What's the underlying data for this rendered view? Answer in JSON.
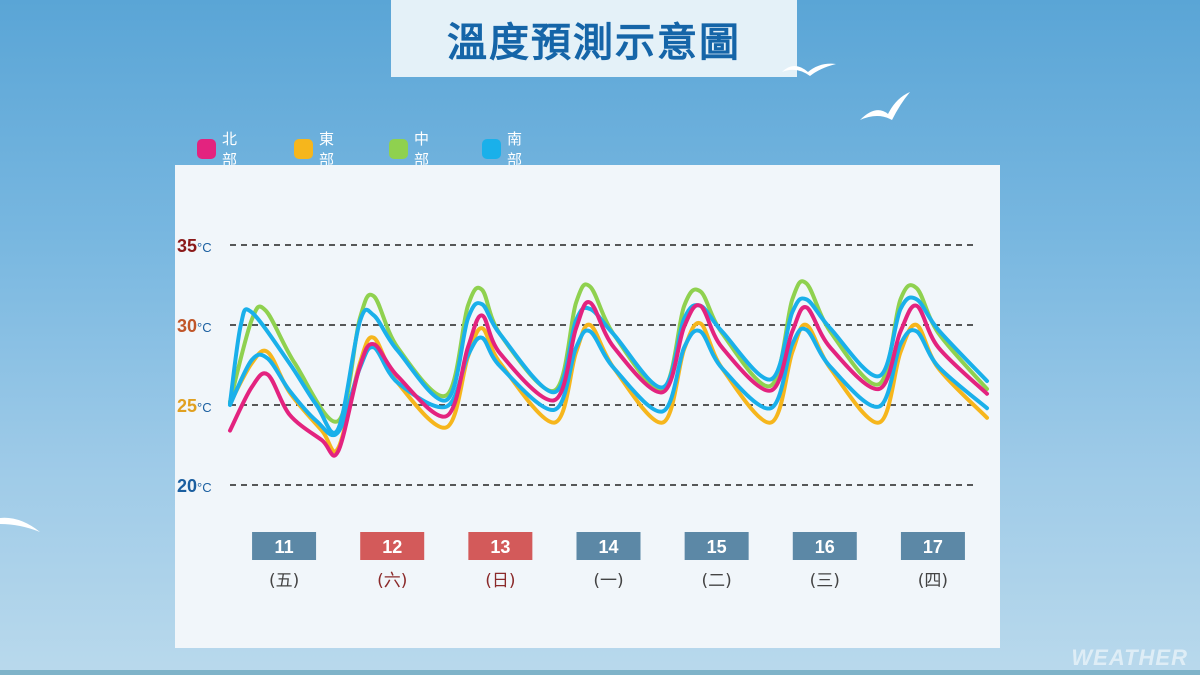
{
  "title": "溫度預測示意圖",
  "watermark": "WEATHER",
  "legend": [
    {
      "label": "北部",
      "color": "#e3237f"
    },
    {
      "label": "東部",
      "color": "#f6b61c"
    },
    {
      "label": "中部",
      "color": "#8fd14f"
    },
    {
      "label": "南部",
      "color": "#1ab0ea"
    }
  ],
  "chart_data": {
    "type": "line",
    "title": "溫度預測示意圖",
    "xlabel": "",
    "ylabel": "",
    "ylim": [
      20,
      36
    ],
    "grid": "dashed reference lines at 20, 25, 30, 35",
    "legend_position": "top-left",
    "y_ticks": [
      {
        "value": 35,
        "num": "35",
        "unit": "°C",
        "color": "#8b1a1a"
      },
      {
        "value": 30,
        "num": "30",
        "unit": "°C",
        "color": "#c0562a"
      },
      {
        "value": 25,
        "num": "25",
        "unit": "°C",
        "color": "#e0a020"
      },
      {
        "value": 20,
        "num": "20",
        "unit": "°C",
        "color": "#1b5fa0"
      }
    ],
    "days": [
      {
        "date": "11",
        "weekday": "(五)",
        "holiday": false
      },
      {
        "date": "12",
        "weekday": "(六)",
        "holiday": true
      },
      {
        "date": "13",
        "weekday": "(日)",
        "holiday": true
      },
      {
        "date": "14",
        "weekday": "(一)",
        "holiday": false
      },
      {
        "date": "15",
        "weekday": "(二)",
        "holiday": false
      },
      {
        "date": "16",
        "weekday": "(三)",
        "holiday": false
      },
      {
        "date": "17",
        "weekday": "(四)",
        "holiday": false
      }
    ],
    "date_box_colors": {
      "weekday": "#5c88a6",
      "holiday": "#d35a5a"
    },
    "weekday_text_colors": {
      "weekday": "#444444",
      "holiday": "#8b2a2a"
    },
    "x_unit": "day index (0 = 11日 00時)",
    "x_range": [
      0,
      7
    ],
    "series": [
      {
        "name": "北部",
        "color": "#e3237f",
        "points": [
          [
            0,
            23.4
          ],
          [
            0.2,
            26.1
          ],
          [
            0.35,
            26.9
          ],
          [
            0.55,
            24.4
          ],
          [
            0.85,
            22.8
          ],
          [
            1.0,
            22.1
          ],
          [
            1.2,
            27.4
          ],
          [
            1.33,
            28.8
          ],
          [
            1.55,
            26.8
          ],
          [
            2.0,
            24.3
          ],
          [
            2.2,
            28.6
          ],
          [
            2.33,
            30.6
          ],
          [
            2.5,
            28.2
          ],
          [
            3.0,
            25.3
          ],
          [
            3.2,
            29.8
          ],
          [
            3.33,
            31.4
          ],
          [
            3.55,
            28.6
          ],
          [
            4.0,
            25.8
          ],
          [
            4.2,
            29.9
          ],
          [
            4.35,
            31.2
          ],
          [
            4.55,
            28.6
          ],
          [
            5.0,
            25.9
          ],
          [
            5.2,
            29.6
          ],
          [
            5.33,
            31.1
          ],
          [
            5.55,
            28.6
          ],
          [
            6.0,
            26.0
          ],
          [
            6.2,
            29.6
          ],
          [
            6.35,
            31.2
          ],
          [
            6.55,
            28.6
          ],
          [
            7.0,
            25.7
          ]
        ]
      },
      {
        "name": "東部",
        "color": "#f6b61c",
        "points": [
          [
            0,
            25.1
          ],
          [
            0.2,
            27.6
          ],
          [
            0.35,
            28.3
          ],
          [
            0.55,
            25.8
          ],
          [
            0.85,
            23.4
          ],
          [
            1.0,
            22.3
          ],
          [
            1.2,
            27.6
          ],
          [
            1.33,
            29.2
          ],
          [
            1.55,
            26.4
          ],
          [
            2.0,
            23.6
          ],
          [
            2.2,
            28.0
          ],
          [
            2.33,
            29.8
          ],
          [
            2.5,
            27.6
          ],
          [
            3.0,
            23.9
          ],
          [
            3.2,
            28.3
          ],
          [
            3.33,
            30.0
          ],
          [
            3.55,
            27.3
          ],
          [
            4.0,
            23.9
          ],
          [
            4.2,
            28.5
          ],
          [
            4.35,
            30.1
          ],
          [
            4.55,
            27.3
          ],
          [
            5.0,
            23.9
          ],
          [
            5.2,
            28.3
          ],
          [
            5.33,
            30.0
          ],
          [
            5.55,
            27.3
          ],
          [
            6.0,
            23.9
          ],
          [
            6.2,
            28.3
          ],
          [
            6.35,
            30.0
          ],
          [
            6.55,
            27.3
          ],
          [
            7.0,
            24.2
          ]
        ]
      },
      {
        "name": "中部",
        "color": "#8fd14f",
        "points": [
          [
            0,
            25.2
          ],
          [
            0.2,
            30.3
          ],
          [
            0.33,
            30.9
          ],
          [
            0.6,
            27.6
          ],
          [
            1.0,
            24.0
          ],
          [
            1.2,
            30.4
          ],
          [
            1.33,
            31.8
          ],
          [
            1.55,
            28.6
          ],
          [
            2.0,
            25.6
          ],
          [
            2.2,
            31.2
          ],
          [
            2.33,
            32.2
          ],
          [
            2.5,
            29.4
          ],
          [
            3.0,
            25.9
          ],
          [
            3.2,
            31.4
          ],
          [
            3.33,
            32.4
          ],
          [
            3.55,
            29.4
          ],
          [
            4.0,
            26.0
          ],
          [
            4.2,
            31.2
          ],
          [
            4.35,
            32.1
          ],
          [
            4.55,
            29.5
          ],
          [
            5.0,
            26.2
          ],
          [
            5.2,
            31.6
          ],
          [
            5.33,
            32.6
          ],
          [
            5.55,
            29.6
          ],
          [
            6.0,
            26.3
          ],
          [
            6.2,
            31.6
          ],
          [
            6.35,
            32.3
          ],
          [
            6.55,
            29.5
          ],
          [
            7.0,
            26.0
          ]
        ]
      },
      {
        "name": "南部",
        "color": "#1ab0ea",
        "points": [
          [
            0,
            25.1
          ],
          [
            0.1,
            30.0
          ],
          [
            0.2,
            30.8
          ],
          [
            0.55,
            27.6
          ],
          [
            0.8,
            25.0
          ],
          [
            1.0,
            23.5
          ],
          [
            1.2,
            30.2
          ],
          [
            1.33,
            30.6
          ],
          [
            1.55,
            28.4
          ],
          [
            2.0,
            25.3
          ],
          [
            2.2,
            30.4
          ],
          [
            2.33,
            31.3
          ],
          [
            2.5,
            29.4
          ],
          [
            3.0,
            25.8
          ],
          [
            3.2,
            30.3
          ],
          [
            3.33,
            31.0
          ],
          [
            3.55,
            29.4
          ],
          [
            4.0,
            26.1
          ],
          [
            4.2,
            30.4
          ],
          [
            4.35,
            31.2
          ],
          [
            4.55,
            29.6
          ],
          [
            5.0,
            26.6
          ],
          [
            5.2,
            30.8
          ],
          [
            5.33,
            31.6
          ],
          [
            5.55,
            29.8
          ],
          [
            6.0,
            26.8
          ],
          [
            6.2,
            31.0
          ],
          [
            6.35,
            31.6
          ],
          [
            6.55,
            29.7
          ],
          [
            7.0,
            26.5
          ]
        ]
      },
      {
        "name": "",
        "color": "#1ab0ea",
        "points": [
          [
            0,
            25.0
          ],
          [
            0.2,
            27.8
          ],
          [
            0.35,
            27.9
          ],
          [
            0.55,
            25.9
          ],
          [
            0.8,
            24.0
          ],
          [
            1.0,
            23.3
          ],
          [
            1.2,
            27.3
          ],
          [
            1.33,
            28.6
          ],
          [
            1.55,
            26.4
          ],
          [
            2.0,
            24.9
          ],
          [
            2.2,
            28.1
          ],
          [
            2.33,
            29.2
          ],
          [
            2.5,
            27.4
          ],
          [
            3.0,
            24.7
          ],
          [
            3.2,
            28.6
          ],
          [
            3.33,
            29.6
          ],
          [
            3.55,
            27.3
          ],
          [
            4.0,
            24.6
          ],
          [
            4.2,
            28.6
          ],
          [
            4.35,
            29.6
          ],
          [
            4.55,
            27.3
          ],
          [
            5.0,
            24.8
          ],
          [
            5.2,
            28.8
          ],
          [
            5.33,
            29.7
          ],
          [
            5.55,
            27.4
          ],
          [
            6.0,
            24.9
          ],
          [
            6.2,
            28.8
          ],
          [
            6.35,
            29.6
          ],
          [
            6.55,
            27.4
          ],
          [
            7.0,
            24.8
          ]
        ]
      }
    ]
  }
}
